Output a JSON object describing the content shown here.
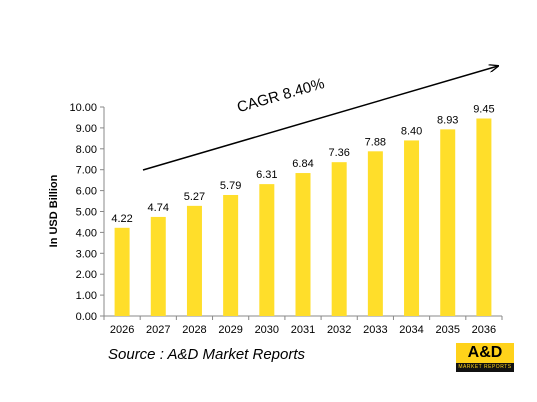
{
  "chart_data": {
    "type": "bar",
    "categories": [
      "2026",
      "2027",
      "2028",
      "2029",
      "2030",
      "2031",
      "2032",
      "2033",
      "2034",
      "2035",
      "2036"
    ],
    "values": [
      4.22,
      4.74,
      5.27,
      5.79,
      6.31,
      6.84,
      7.36,
      7.88,
      8.4,
      8.93,
      9.45
    ],
    "value_labels": [
      "4.22",
      "4.74",
      "5.27",
      "5.79",
      "6.31",
      "6.84",
      "7.36",
      "7.88",
      "8.40",
      "8.93",
      "9.45"
    ],
    "title": "",
    "xlabel": "",
    "ylabel": "In USD Billion",
    "ylim": [
      0,
      10
    ],
    "yticks": [
      "0.00",
      "1.00",
      "2.00",
      "3.00",
      "4.00",
      "5.00",
      "6.00",
      "7.00",
      "8.00",
      "9.00",
      "10.00"
    ],
    "grid": false,
    "bar_color": "#ffde2a",
    "annotation": "CAGR 8.40%"
  },
  "source": "Source : A&D Market Reports",
  "logo": {
    "main": "A&D",
    "sub": "MARKET REPORTS",
    "bg": "#ffd21a"
  }
}
